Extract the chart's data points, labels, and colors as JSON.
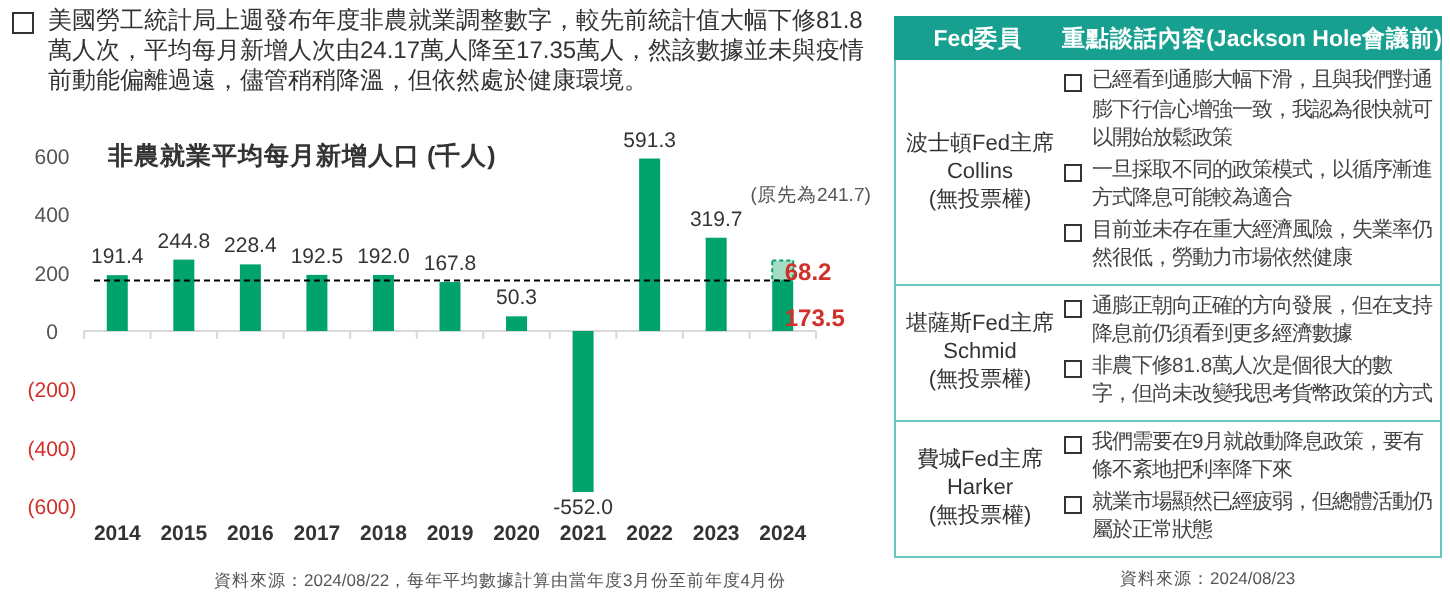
{
  "chart_data": [
    {
      "type": "bar",
      "title": "非農就業平均每月新增人口 (千人)",
      "subtitle": "美國勞工統計局上週發布年度非農就業調整數字，較先前統計值大幅下修81.8萬人次，平均每月新增人次由24.17萬人降至17.35萬人，然該數據並未與疫情前動能偏離過遠，儘管稍稍降溫，但依然處於健康環境。",
      "categories": [
        "2014",
        "2015",
        "2016",
        "2017",
        "2018",
        "2019",
        "2020",
        "2021",
        "2022",
        "2023",
        "2024"
      ],
      "stacked": true,
      "series": [
        {
          "color": "#00a36c",
          "values": [
            191.4,
            244.8,
            228.4,
            192.5,
            192.0,
            167.8,
            50.3,
            -552.0,
            591.3,
            319.7,
            173.5
          ],
          "value_labels": [
            "191.4",
            "244.8",
            "228.4",
            "192.5",
            "192.0",
            "167.8",
            "50.3",
            "-552.0",
            "591.3",
            "319.7",
            "173.5"
          ]
        },
        {
          "color": "#a6dcc4",
          "values": [
            null,
            null,
            null,
            null,
            null,
            null,
            null,
            null,
            null,
            null,
            68.2
          ],
          "value_labels": [
            null,
            null,
            null,
            null,
            null,
            null,
            null,
            null,
            null,
            null,
            "68.2"
          ]
        }
      ],
      "ylim": [
        -600,
        600
      ],
      "yticks": [
        600,
        400,
        200,
        0,
        {
          "value": -200,
          "label": "(200)"
        },
        {
          "value": -400,
          "label": "(400)"
        },
        {
          "value": -600,
          "label": "(600)"
        }
      ],
      "ref_lines": [
        {
          "axis": "y",
          "value": 173.5,
          "color": "#000000",
          "line_style": "dashed"
        }
      ],
      "grid": false,
      "annotations": [
        {
          "text": "(原先為241.7)",
          "x": "2024",
          "y": 241.7
        },
        "資料來源：2024/08/22，每年平均數據計算由當年度3月份至前年度4月份"
      ]
    },
    {
      "type": "other",
      "categories": [
        "Fed委員",
        "重點談話內容(Jackson Hole會議前)"
      ],
      "y_categories": [
        "波士頓Fed主席\nCollins\n(無投票權)",
        "堪薩斯Fed主席\nSchmid\n(無投票權)",
        "費城Fed主席\nHarker\n(無投票權)"
      ],
      "cell_labels": [
        [
          "已經看到通膨大幅下滑，且與我們對通膨下行信心增強一致，我認為很快就可以開始放鬆政策",
          "一旦採取不同的政策模式，以循序漸進方式降息可能較為適合",
          "目前並未存在重大經濟風險，失業率仍然很低，勞動力市場依然健康"
        ],
        [
          "通膨正朝向正確的方向發展，但在支持降息前仍須看到更多經濟數據",
          "非農下修81.8萬人次是個很大的數字，但尚未改變我思考貨幣政策的方式"
        ],
        [
          "我們需要在9月就啟動降息政策，要有條不紊地把利率降下來",
          "就業市場顯然已經疲弱，但總體活動仍屬於正常狀態"
        ]
      ],
      "annotations": [
        "資料來源：2024/08/23"
      ]
    }
  ]
}
